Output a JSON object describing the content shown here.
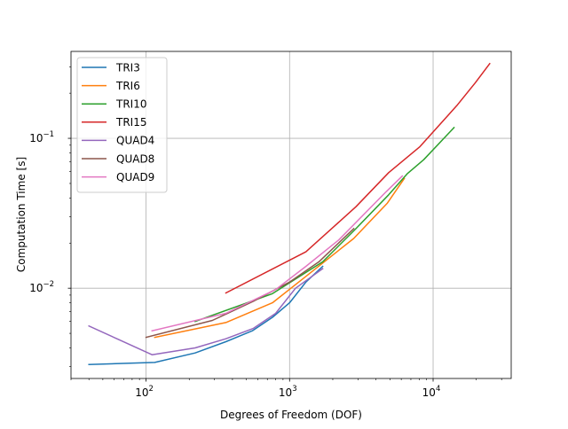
{
  "chart_data": {
    "type": "line",
    "xlabel": "Degrees of Freedom (DOF)",
    "ylabel": "Computation Time [s]",
    "xscale": "log",
    "yscale": "log",
    "xlim": [
      30,
      35000
    ],
    "ylim": [
      0.0025,
      0.38
    ],
    "grid": true,
    "legend_placement": "upper-left",
    "x_tick_labels": [
      {
        "value": 100,
        "base": "10",
        "exp": "2"
      },
      {
        "value": 1000,
        "base": "10",
        "exp": "3"
      },
      {
        "value": 10000,
        "base": "10",
        "exp": "4"
      }
    ],
    "y_tick_labels": [
      {
        "value": 0.01,
        "base": "10",
        "exp": "−2"
      },
      {
        "value": 0.1,
        "base": "10",
        "exp": "−1"
      }
    ],
    "series": [
      {
        "name": "TRI3",
        "color": "#1f77b4",
        "x": [
          40,
          115,
          220,
          360,
          550,
          760,
          1000,
          1300,
          1700
        ],
        "y": [
          0.0031,
          0.0032,
          0.0037,
          0.0044,
          0.0052,
          0.0064,
          0.008,
          0.011,
          0.014
        ]
      },
      {
        "name": "TRI6",
        "color": "#ff7f0e",
        "x": [
          115,
          360,
          760,
          1300,
          2800,
          4800,
          6300
        ],
        "y": [
          0.0047,
          0.0059,
          0.008,
          0.012,
          0.0215,
          0.037,
          0.054
        ]
      },
      {
        "name": "TRI10",
        "color": "#2ca02c",
        "x": [
          220,
          760,
          1700,
          2900,
          4900,
          6600,
          8600,
          14000
        ],
        "y": [
          0.006,
          0.0092,
          0.015,
          0.025,
          0.042,
          0.058,
          0.072,
          0.118
        ]
      },
      {
        "name": "TRI15",
        "color": "#d62728",
        "x": [
          360,
          1300,
          2900,
          4900,
          8100,
          14600,
          19700,
          24800
        ],
        "y": [
          0.0093,
          0.0175,
          0.035,
          0.059,
          0.088,
          0.165,
          0.235,
          0.315
        ]
      },
      {
        "name": "QUAD4",
        "color": "#9467bd",
        "x": [
          40,
          110,
          220,
          360,
          560,
          800,
          1100,
          1700
        ],
        "y": [
          0.0056,
          0.0036,
          0.004,
          0.0046,
          0.0054,
          0.0068,
          0.01,
          0.0135
        ]
      },
      {
        "name": "QUAD8",
        "color": "#8c564b",
        "x": [
          100,
          290,
          560,
          1000,
          1600,
          2800
        ],
        "y": [
          0.0047,
          0.0061,
          0.0082,
          0.011,
          0.015,
          0.025
        ]
      },
      {
        "name": "QUAD9",
        "color": "#e377c2",
        "x": [
          110,
          360,
          800,
          1300,
          2200,
          4700,
          6100
        ],
        "y": [
          0.0052,
          0.0068,
          0.0098,
          0.014,
          0.021,
          0.044,
          0.056
        ]
      }
    ]
  }
}
